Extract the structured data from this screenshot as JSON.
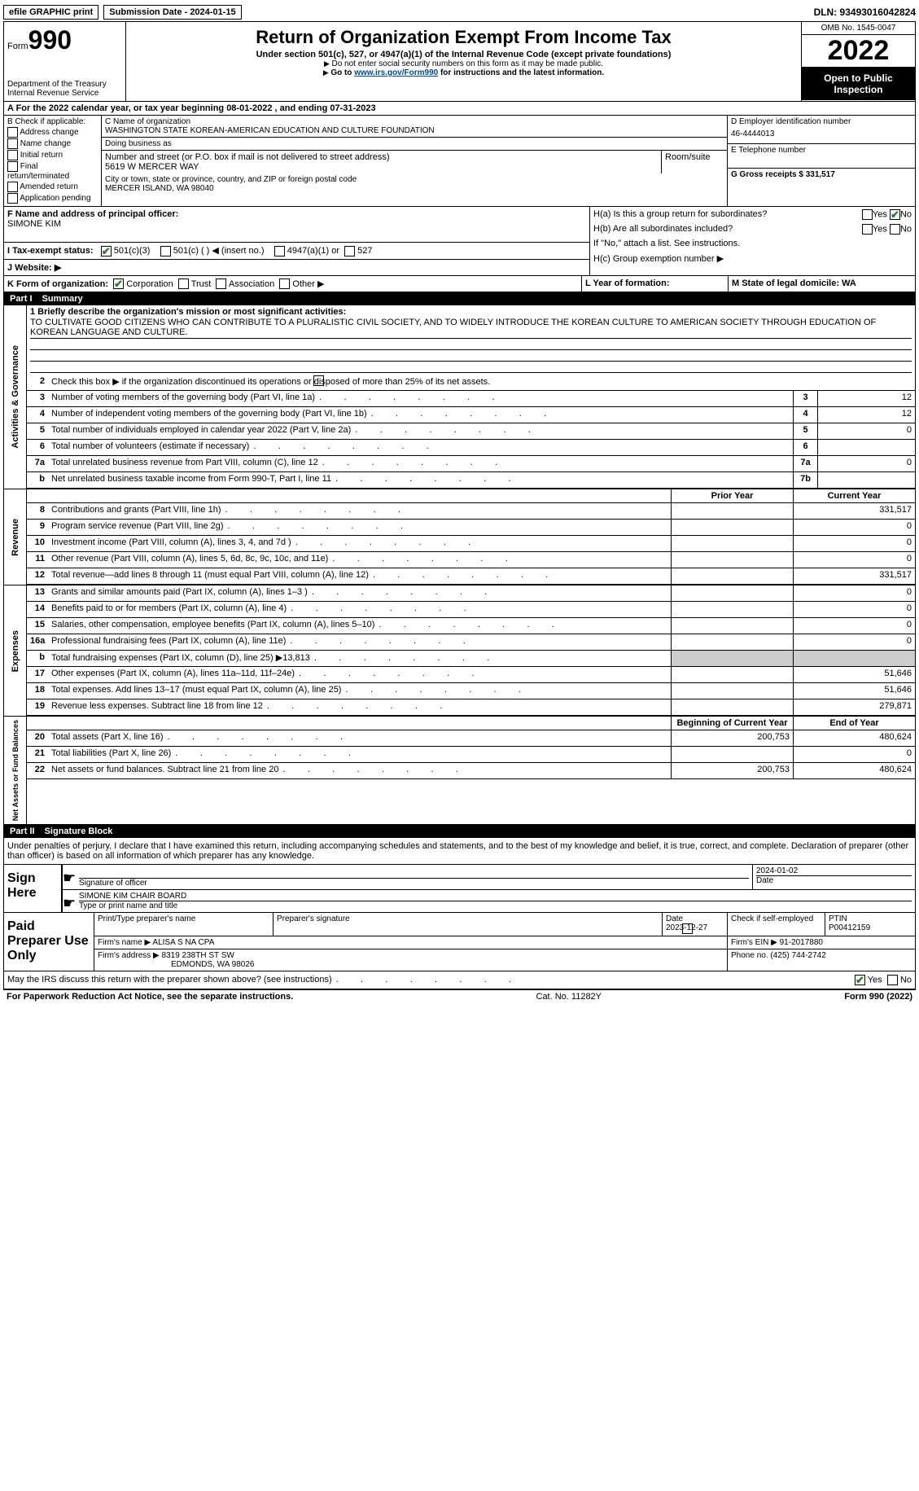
{
  "top": {
    "efile": "efile GRAPHIC print",
    "submission_label": "Submission Date - 2024-01-15",
    "dln_label": "DLN: 93493016042824"
  },
  "header": {
    "form_prefix": "Form",
    "form_num": "990",
    "dept": "Department of the Treasury",
    "irs": "Internal Revenue Service",
    "title": "Return of Organization Exempt From Income Tax",
    "subtitle": "Under section 501(c), 527, or 4947(a)(1) of the Internal Revenue Code (except private foundations)",
    "note1": "Do not enter social security numbers on this form as it may be made public.",
    "note2_pre": "Go to ",
    "note2_link": "www.irs.gov/Form990",
    "note2_post": " for instructions and the latest information.",
    "omb": "OMB No. 1545-0047",
    "year": "2022",
    "open": "Open to Public Inspection"
  },
  "row_a": "A For the 2022 calendar year, or tax year beginning 08-01-2022    , and ending 07-31-2023",
  "col_b": {
    "title": "B Check if applicable:",
    "items": [
      "Address change",
      "Name change",
      "Initial return",
      "Final return/terminated",
      "Amended return",
      "Application pending"
    ]
  },
  "col_c": {
    "name_lbl": "C Name of organization",
    "name": "WASHINGTON STATE KOREAN-AMERICAN EDUCATION AND CULTURE FOUNDATION",
    "dba_lbl": "Doing business as",
    "dba": "",
    "street_lbl": "Number and street (or P.O. box if mail is not delivered to street address)",
    "room_lbl": "Room/suite",
    "street": "5619 W MERCER WAY",
    "city_lbl": "City or town, state or province, country, and ZIP or foreign postal code",
    "city": "MERCER ISLAND, WA  98040"
  },
  "col_deg": {
    "d_lbl": "D Employer identification number",
    "d_val": "46-4444013",
    "e_lbl": "E Telephone number",
    "e_val": "",
    "g_lbl": "G Gross receipts $ 331,517"
  },
  "row_f": {
    "lbl": "F  Name and address of principal officer:",
    "val": "SIMONE KIM"
  },
  "row_h": {
    "ha": "H(a)  Is this a group return for subordinates?",
    "hb": "H(b)  Are all subordinates included?",
    "hb_note": "If \"No,\" attach a list. See instructions.",
    "hc": "H(c)  Group exemption number ▶",
    "yes": "Yes",
    "no": "No"
  },
  "row_i": {
    "lbl": "I  Tax-exempt status:",
    "o1": "501(c)(3)",
    "o2": "501(c) (   ) ◀ (insert no.)",
    "o3": "4947(a)(1) or",
    "o4": "527"
  },
  "row_j": {
    "lbl": "J  Website: ▶",
    "val": ""
  },
  "row_k": {
    "lbl": "K Form of organization:",
    "o1": "Corporation",
    "o2": "Trust",
    "o3": "Association",
    "o4": "Other ▶",
    "l_lbl": "L Year of formation:",
    "l_val": "",
    "m_lbl": "M State of legal domicile: WA"
  },
  "part1": {
    "title": "Part I",
    "name": "Summary",
    "q1_lbl": "1  Briefly describe the organization's mission or most significant activities:",
    "q1_val": "TO CULTIVATE GOOD CITIZENS WHO CAN CONTRIBUTE TO A PLURALISTIC CIVIL SOCIETY, AND TO WIDELY INTRODUCE THE KOREAN CULTURE TO AMERICAN SOCIETY THROUGH EDUCATION OF KOREAN LANGUAGE AND CULTURE.",
    "q2": "Check this box ▶        if the organization discontinued its operations or disposed of more than 25% of its net assets.",
    "lines_gov": [
      {
        "n": "3",
        "d": "Number of voting members of the governing body (Part VI, line 1a)",
        "box": "3",
        "v": "12"
      },
      {
        "n": "4",
        "d": "Number of independent voting members of the governing body (Part VI, line 1b)",
        "box": "4",
        "v": "12"
      },
      {
        "n": "5",
        "d": "Total number of individuals employed in calendar year 2022 (Part V, line 2a)",
        "box": "5",
        "v": "0"
      },
      {
        "n": "6",
        "d": "Total number of volunteers (estimate if necessary)",
        "box": "6",
        "v": ""
      },
      {
        "n": "7a",
        "d": "Total unrelated business revenue from Part VIII, column (C), line 12",
        "box": "7a",
        "v": "0"
      },
      {
        "n": "b",
        "d": "Net unrelated business taxable income from Form 990-T, Part I, line 11",
        "box": "7b",
        "v": ""
      }
    ],
    "col_prior": "Prior Year",
    "col_curr": "Current Year",
    "lines_rev": [
      {
        "n": "8",
        "d": "Contributions and grants (Part VIII, line 1h)",
        "p": "",
        "c": "331,517"
      },
      {
        "n": "9",
        "d": "Program service revenue (Part VIII, line 2g)",
        "p": "",
        "c": "0"
      },
      {
        "n": "10",
        "d": "Investment income (Part VIII, column (A), lines 3, 4, and 7d )",
        "p": "",
        "c": "0"
      },
      {
        "n": "11",
        "d": "Other revenue (Part VIII, column (A), lines 5, 6d, 8c, 9c, 10c, and 11e)",
        "p": "",
        "c": "0"
      },
      {
        "n": "12",
        "d": "Total revenue—add lines 8 through 11 (must equal Part VIII, column (A), line 12)",
        "p": "",
        "c": "331,517"
      }
    ],
    "lines_exp": [
      {
        "n": "13",
        "d": "Grants and similar amounts paid (Part IX, column (A), lines 1–3 )",
        "p": "",
        "c": "0"
      },
      {
        "n": "14",
        "d": "Benefits paid to or for members (Part IX, column (A), line 4)",
        "p": "",
        "c": "0"
      },
      {
        "n": "15",
        "d": "Salaries, other compensation, employee benefits (Part IX, column (A), lines 5–10)",
        "p": "",
        "c": "0"
      },
      {
        "n": "16a",
        "d": "Professional fundraising fees (Part IX, column (A), line 11e)",
        "p": "",
        "c": "0"
      },
      {
        "n": "b",
        "d": "Total fundraising expenses (Part IX, column (D), line 25) ▶13,813",
        "p": "shade",
        "c": "shade"
      },
      {
        "n": "17",
        "d": "Other expenses (Part IX, column (A), lines 11a–11d, 11f–24e)",
        "p": "",
        "c": "51,646"
      },
      {
        "n": "18",
        "d": "Total expenses. Add lines 13–17 (must equal Part IX, column (A), line 25)",
        "p": "",
        "c": "51,646"
      },
      {
        "n": "19",
        "d": "Revenue less expenses. Subtract line 18 from line 12",
        "p": "",
        "c": "279,871"
      }
    ],
    "col_beg": "Beginning of Current Year",
    "col_end": "End of Year",
    "lines_net": [
      {
        "n": "20",
        "d": "Total assets (Part X, line 16)",
        "p": "200,753",
        "c": "480,624"
      },
      {
        "n": "21",
        "d": "Total liabilities (Part X, line 26)",
        "p": "",
        "c": "0"
      },
      {
        "n": "22",
        "d": "Net assets or fund balances. Subtract line 21 from line 20",
        "p": "200,753",
        "c": "480,624"
      }
    ],
    "vl_gov": "Activities & Governance",
    "vl_rev": "Revenue",
    "vl_exp": "Expenses",
    "vl_net": "Net Assets or Fund Balances"
  },
  "part2": {
    "title": "Part II",
    "name": "Signature Block",
    "decl": "Under penalties of perjury, I declare that I have examined this return, including accompanying schedules and statements, and to the best of my knowledge and belief, it is true, correct, and complete. Declaration of preparer (other than officer) is based on all information of which preparer has any knowledge.",
    "sign_here": "Sign Here",
    "sig_officer": "Signature of officer",
    "sig_date": "Date",
    "sig_date_val": "2024-01-02",
    "sig_name": "SIMONE KIM CHAIR BOARD",
    "sig_name_lbl": "Type or print name and title",
    "paid": "Paid Preparer Use Only",
    "prep_name_lbl": "Print/Type preparer's name",
    "prep_sig_lbl": "Preparer's signature",
    "prep_date_lbl": "Date",
    "prep_date": "2023-12-27",
    "prep_check": "Check         if self-employed",
    "ptin_lbl": "PTIN",
    "ptin": "P00412159",
    "firm_name_lbl": "Firm's name     ▶",
    "firm_name": "ALISA S NA CPA",
    "firm_ein_lbl": "Firm's EIN ▶",
    "firm_ein": "91-2017880",
    "firm_addr_lbl": "Firm's address ▶",
    "firm_addr1": "8319 238TH ST SW",
    "firm_addr2": "EDMONDS, WA  98026",
    "phone_lbl": "Phone no.",
    "phone": "(425) 744-2742"
  },
  "footer": {
    "discuss": "May the IRS discuss this return with the preparer shown above? (see instructions)",
    "yes": "Yes",
    "no": "No",
    "pra": "For Paperwork Reduction Act Notice, see the separate instructions.",
    "cat": "Cat. No. 11282Y",
    "form": "Form 990 (2022)"
  }
}
